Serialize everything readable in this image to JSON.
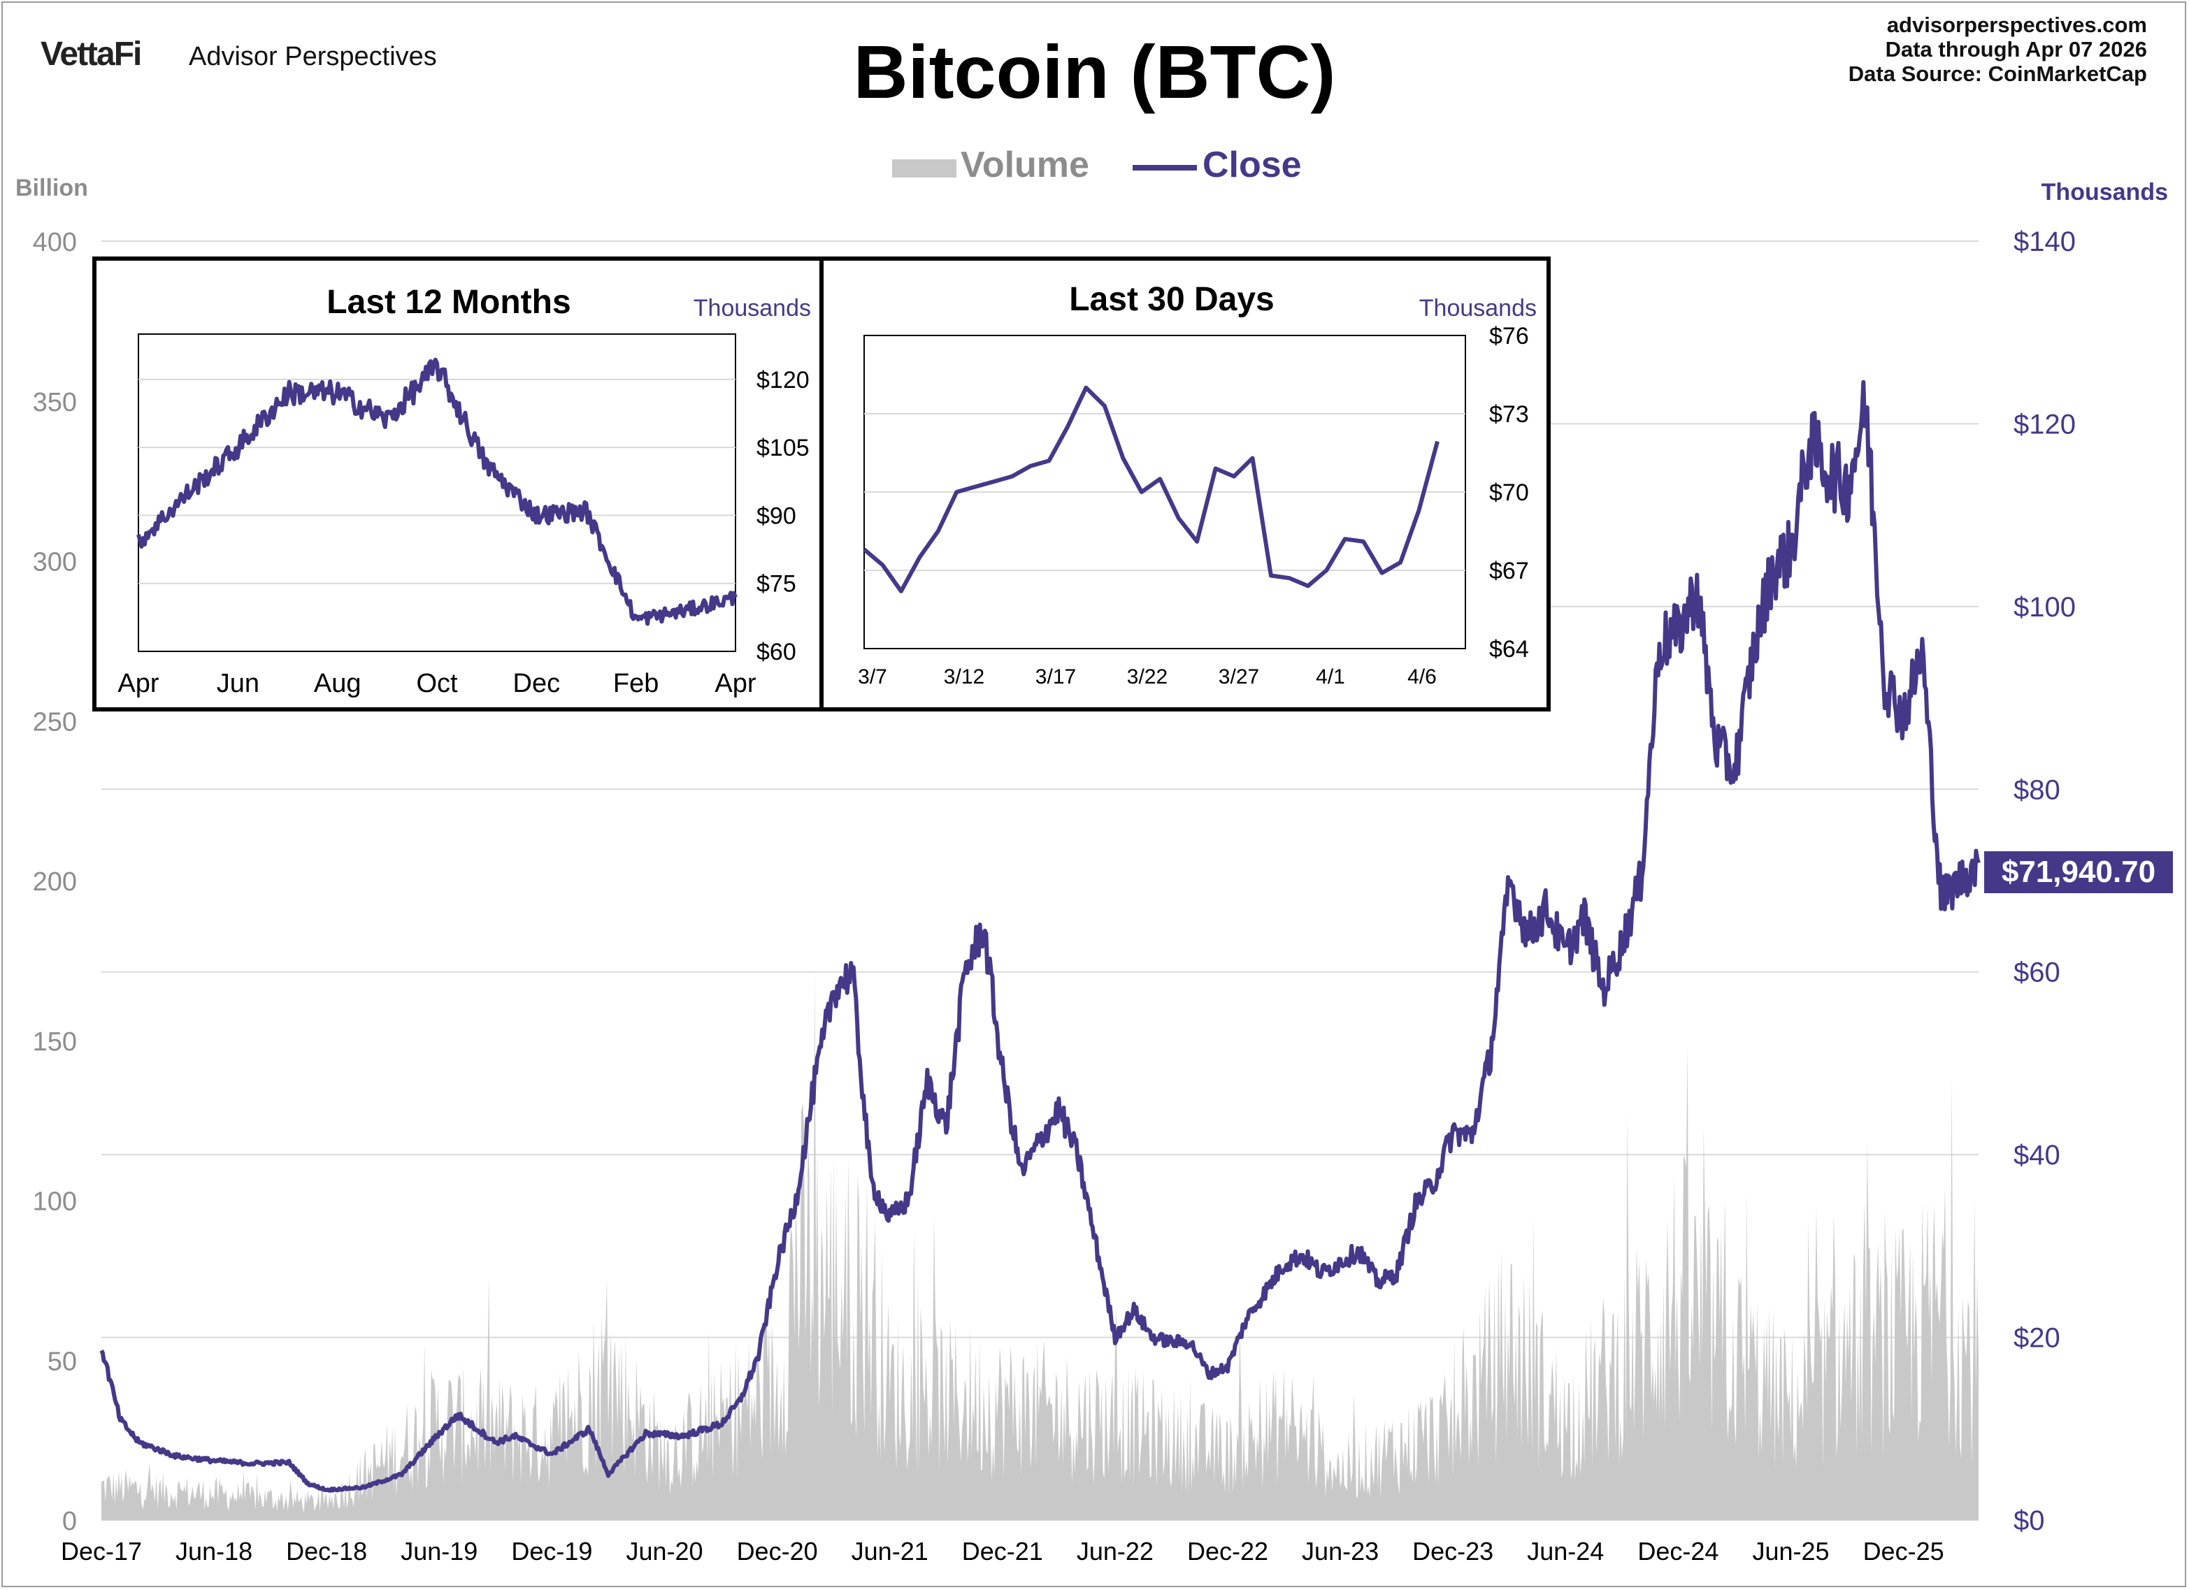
{
  "header": {
    "brand_name": "VettaFi",
    "brand_sub": "Advisor Perspectives",
    "source_lines": [
      "advisorperspectives.com",
      "Data through Apr 07 2026",
      "Data Source: CoinMarketCap"
    ]
  },
  "colors": {
    "close": "#463888",
    "volume": "#c8c8c8",
    "grid": "#d9d9d9",
    "left_axis_text": "#8c8c8c"
  },
  "legend": [
    {
      "label": "Volume",
      "color": "#c8c8c8"
    },
    {
      "label": "Close",
      "color": "#463888"
    }
  ],
  "last_value_label": "$71,940.70",
  "chart_data": [
    {
      "type": "line",
      "title": "Bitcoin (BTC)",
      "legend_position": "top-center",
      "grid": true,
      "x_tick_labels": [
        "Dec-17",
        "Jun-18",
        "Dec-18",
        "Jun-19",
        "Dec-19",
        "Jun-20",
        "Dec-20",
        "Jun-21",
        "Dec-21",
        "Jun-22",
        "Dec-22",
        "Jun-23",
        "Dec-23",
        "Jun-24",
        "Dec-24",
        "Jun-25",
        "Dec-25"
      ],
      "y_left": {
        "unit_label": "Billion",
        "range": [
          0,
          400
        ],
        "ticks": [
          "0",
          "50",
          "100",
          "150",
          "200",
          "250",
          "300",
          "350",
          "400"
        ]
      },
      "y_right": {
        "unit_label": "Thousands",
        "range": [
          0,
          140
        ],
        "ticks": [
          "$0",
          "$20",
          "$40",
          "$60",
          "$80",
          "$100",
          "$120",
          "$140"
        ]
      },
      "series": [
        {
          "name": "Close",
          "axis": "right",
          "x": [
            "2017-12",
            "2018-01",
            "2018-02",
            "2018-04",
            "2018-06",
            "2018-08",
            "2018-10",
            "2018-11",
            "2018-12",
            "2019-02",
            "2019-04",
            "2019-06",
            "2019-07",
            "2019-09",
            "2019-10",
            "2019-12",
            "2020-02",
            "2020-03",
            "2020-05",
            "2020-07",
            "2020-09",
            "2020-10",
            "2020-11",
            "2020-12",
            "2021-01",
            "2021-02",
            "2021-03",
            "2021-04",
            "2021-05",
            "2021-06",
            "2021-07",
            "2021-08",
            "2021-09",
            "2021-10",
            "2021-11",
            "2021-12",
            "2022-01",
            "2022-03",
            "2022-04",
            "2022-05",
            "2022-06",
            "2022-07",
            "2022-08",
            "2022-09",
            "2022-10",
            "2022-11",
            "2022-12",
            "2023-01",
            "2023-03",
            "2023-04",
            "2023-05",
            "2023-07",
            "2023-08",
            "2023-09",
            "2023-10",
            "2023-11",
            "2023-12",
            "2024-01",
            "2024-02",
            "2024-03",
            "2024-04",
            "2024-05",
            "2024-06",
            "2024-07",
            "2024-08",
            "2024-09",
            "2024-10",
            "2024-11",
            "2024-12",
            "2025-01",
            "2025-02",
            "2025-03",
            "2025-04",
            "2025-05",
            "2025-06",
            "2025-07",
            "2025-08",
            "2025-09",
            "2025-10",
            "2025-11",
            "2025-12",
            "2026-01",
            "2026-02",
            "2026-03",
            "2026-04"
          ],
          "y": [
            19.0,
            11.0,
            8.5,
            7.0,
            6.5,
            6.2,
            6.3,
            4.0,
            3.3,
            3.6,
            5.0,
            9.5,
            11.5,
            8.5,
            9.2,
            7.2,
            10.0,
            5.0,
            9.5,
            9.2,
            10.5,
            13.0,
            18.0,
            28.0,
            35.0,
            48.0,
            58.0,
            60.0,
            37.0,
            33.0,
            35.0,
            48.0,
            43.0,
            60.0,
            65.0,
            49.0,
            38.0,
            45.0,
            40.0,
            30.0,
            20.0,
            23.0,
            20.0,
            19.5,
            19.5,
            16.0,
            16.8,
            22.0,
            28.0,
            29.0,
            27.0,
            29.5,
            26.0,
            27.0,
            34.5,
            37.0,
            42.5,
            42.0,
            51.0,
            70.0,
            64.0,
            67.0,
            62.0,
            66.0,
            58.0,
            63.0,
            70.0,
            96.0,
            97.0,
            102.0,
            85.0,
            82.0,
            95.0,
            104.0,
            106.0,
            118.0,
            115.0,
            113.0,
            122.0,
            92.0,
            88.0,
            95.0,
            68.0,
            70.0,
            71.94
          ]
        },
        {
          "name": "Volume",
          "axis": "left",
          "x": [
            "2017-12",
            "2018-06",
            "2018-12",
            "2019-06",
            "2019-12",
            "2020-03",
            "2020-06",
            "2020-12",
            "2021-01",
            "2021-05",
            "2021-06",
            "2021-12",
            "2022-06",
            "2022-12",
            "2023-03",
            "2023-06",
            "2023-12",
            "2024-03",
            "2024-06",
            "2024-11",
            "2024-12",
            "2025-03",
            "2025-06",
            "2025-09",
            "2025-12",
            "2026-02",
            "2026-04"
          ],
          "y": [
            10,
            8,
            5,
            30,
            25,
            45,
            20,
            40,
            80,
            65,
            40,
            35,
            30,
            20,
            30,
            15,
            28,
            55,
            30,
            60,
            70,
            50,
            35,
            50,
            55,
            65,
            45
          ]
        }
      ]
    },
    {
      "type": "line",
      "title": "Last 12 Months",
      "grid": true,
      "y_unit_label": "Thousands",
      "x_tick_labels": [
        "Apr",
        "Jun",
        "Aug",
        "Oct",
        "Dec",
        "Feb",
        "Apr"
      ],
      "y_ticks": [
        "$60",
        "$75",
        "$90",
        "$105",
        "$120"
      ],
      "y_range": [
        60,
        130
      ],
      "series": [
        {
          "name": "Close",
          "x": [
            "2025-04",
            "2025-05",
            "2025-06",
            "2025-07",
            "2025-08",
            "2025-09",
            "2025-10",
            "2025-11",
            "2025-12",
            "2026-01",
            "2026-02",
            "2026-03",
            "2026-04"
          ],
          "y": [
            84,
            95,
            105,
            117,
            117,
            111,
            123,
            101,
            90,
            91,
            67,
            69,
            71.9
          ]
        }
      ]
    },
    {
      "type": "line",
      "title": "Last 30 Days",
      "grid": true,
      "y_unit_label": "Thousands",
      "x_tick_labels": [
        "3/7",
        "3/12",
        "3/17",
        "3/22",
        "3/27",
        "4/1",
        "4/6"
      ],
      "y_ticks": [
        "$64",
        "$67",
        "$70",
        "$73",
        "$76"
      ],
      "y_range": [
        64,
        76
      ],
      "series": [
        {
          "name": "Close",
          "x": [
            "3/7",
            "3/8",
            "3/9",
            "3/10",
            "3/11",
            "3/12",
            "3/13",
            "3/14",
            "3/15",
            "3/16",
            "3/17",
            "3/18",
            "3/19",
            "3/20",
            "3/21",
            "3/22",
            "3/23",
            "3/24",
            "3/25",
            "3/26",
            "3/27",
            "3/28",
            "3/29",
            "3/30",
            "3/31",
            "4/1",
            "4/2",
            "4/3",
            "4/4",
            "4/5",
            "4/6",
            "4/7"
          ],
          "y": [
            67.8,
            67.2,
            66.2,
            67.5,
            68.5,
            70.0,
            70.2,
            70.4,
            70.6,
            71.0,
            71.2,
            72.5,
            74.0,
            73.3,
            71.3,
            70.0,
            70.5,
            69.0,
            68.1,
            70.9,
            70.6,
            71.3,
            66.8,
            66.7,
            66.4,
            67.0,
            68.2,
            68.1,
            66.9,
            67.3,
            69.3,
            71.94
          ]
        }
      ]
    }
  ]
}
